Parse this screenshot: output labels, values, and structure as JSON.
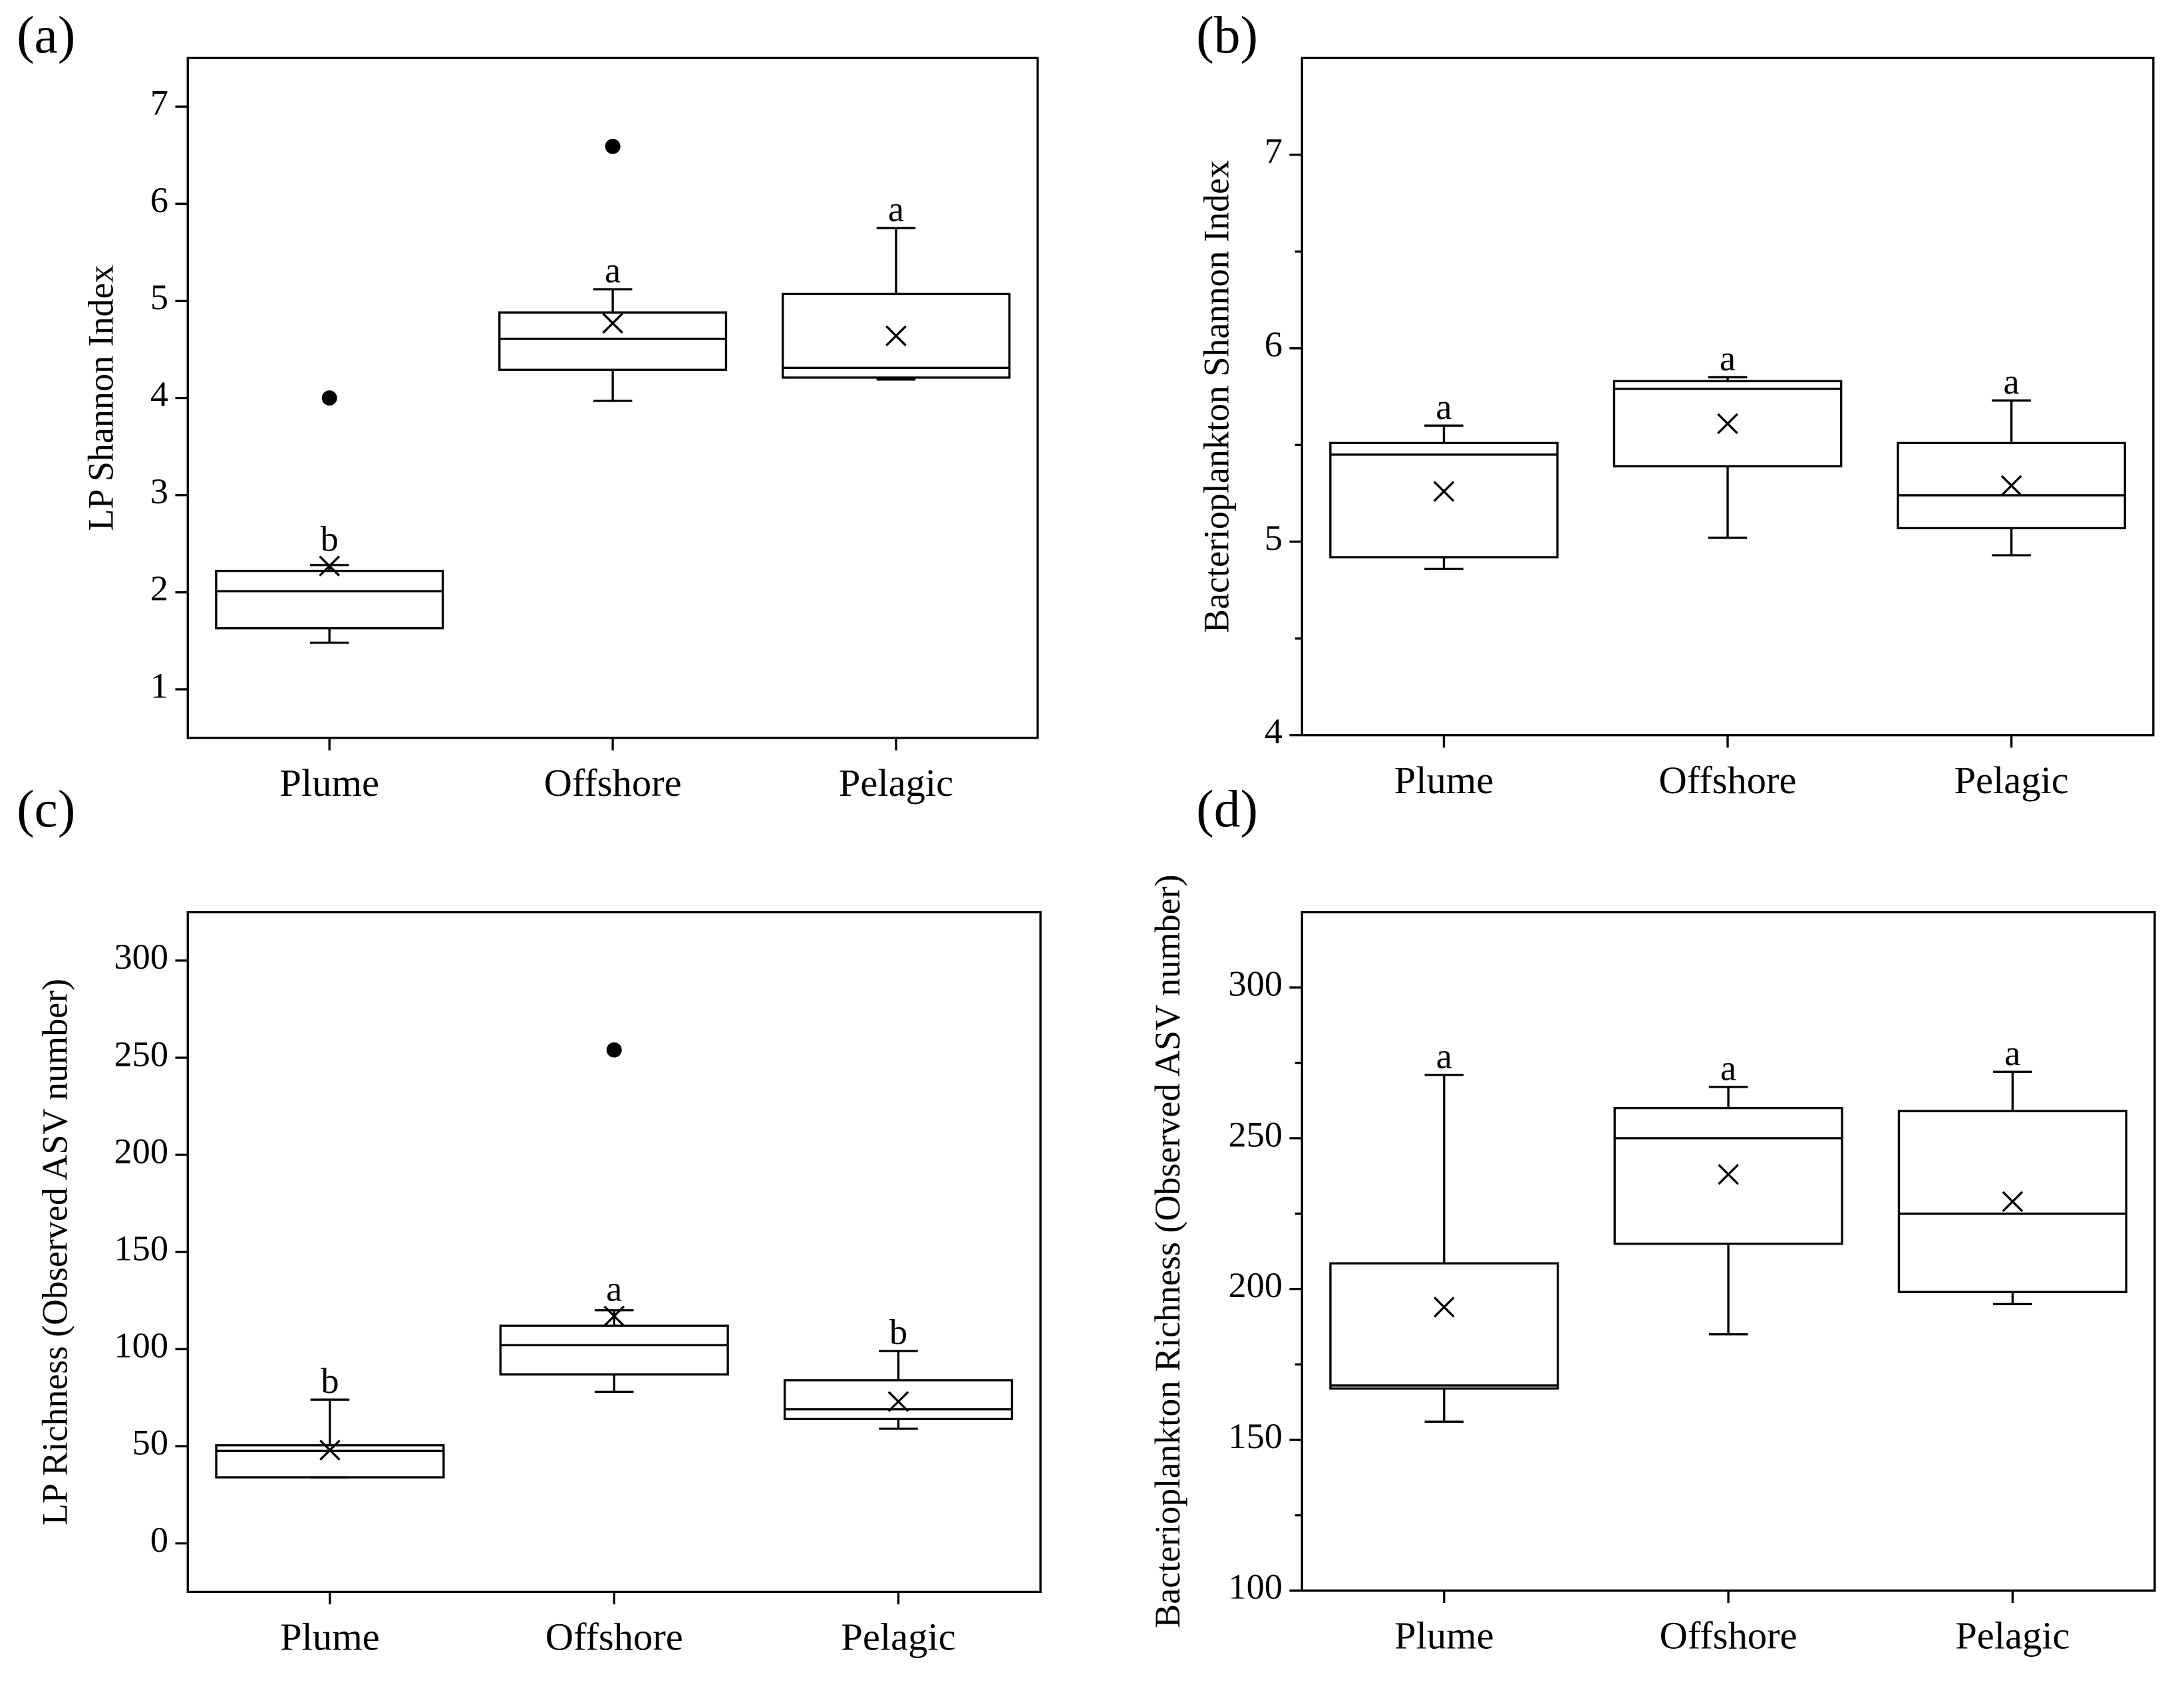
{
  "chart_data": [
    {
      "type": "box",
      "panel": "(a)",
      "ylabel": "LP Shannon Index",
      "categories": [
        "Plume",
        "Offshore",
        "Pelagic"
      ],
      "boxes": [
        {
          "min": 1.48,
          "q1": 1.63,
          "median": 2.01,
          "q3": 2.22,
          "max": 2.28,
          "mean": 2.27,
          "outliers": [
            4.0
          ],
          "letter": "b"
        },
        {
          "min": 3.97,
          "q1": 4.29,
          "median": 4.61,
          "q3": 4.88,
          "max": 5.12,
          "mean": 4.77,
          "outliers": [
            6.59
          ],
          "letter": "a"
        },
        {
          "min": 4.19,
          "q1": 4.21,
          "median": 4.31,
          "q3": 5.07,
          "max": 5.75,
          "mean": 4.64,
          "outliers": [],
          "letter": "a"
        }
      ],
      "ylim": [
        0.5,
        7.5
      ],
      "yticks": [
        1,
        2,
        3,
        4,
        5,
        6,
        7
      ],
      "yminor": []
    },
    {
      "type": "box",
      "panel": "(b)",
      "ylabel": "Bacterioplankton Shannon Index",
      "categories": [
        "Plume",
        "Offshore",
        "Pelagic"
      ],
      "boxes": [
        {
          "min": 4.86,
          "q1": 4.92,
          "median": 5.45,
          "q3": 5.51,
          "max": 5.6,
          "mean": 5.26,
          "outliers": [],
          "letter": "a"
        },
        {
          "min": 5.02,
          "q1": 5.39,
          "median": 5.79,
          "q3": 5.83,
          "max": 5.85,
          "mean": 5.61,
          "outliers": [],
          "letter": "a"
        },
        {
          "min": 4.93,
          "q1": 5.07,
          "median": 5.24,
          "q3": 5.51,
          "max": 5.73,
          "mean": 5.29,
          "outliers": [],
          "letter": "a"
        }
      ],
      "ylim": [
        4,
        7.5
      ],
      "yticks": [
        4,
        5,
        6,
        7
      ],
      "yminor": [
        4.5,
        5.5,
        6.5
      ]
    },
    {
      "type": "box",
      "panel": "(c)",
      "ylabel": "LP Richness (Observed ASV number)",
      "categories": [
        "Plume",
        "Offshore",
        "Pelagic"
      ],
      "boxes": [
        {
          "min": 34,
          "q1": 34,
          "median": 47.6,
          "q3": 50.5,
          "max": 74,
          "mean": 48,
          "outliers": [],
          "letter": "b"
        },
        {
          "min": 78,
          "q1": 87,
          "median": 102,
          "q3": 112,
          "max": 120,
          "mean": 117,
          "outliers": [
            254
          ],
          "letter": "a"
        },
        {
          "min": 59,
          "q1": 64,
          "median": 69,
          "q3": 84,
          "max": 99,
          "mean": 73,
          "outliers": [],
          "letter": "b"
        }
      ],
      "ylim": [
        -25,
        325
      ],
      "yticks": [
        0,
        50,
        100,
        150,
        200,
        250,
        300
      ],
      "yminor": []
    },
    {
      "type": "box",
      "panel": "(d)",
      "ylabel": "Bacterioplankton Richness (Observed ASV number)",
      "categories": [
        "Plume",
        "Offshore",
        "Pelagic"
      ],
      "boxes": [
        {
          "min": 156,
          "q1": 167,
          "median": 168,
          "q3": 208.5,
          "max": 271,
          "mean": 194,
          "outliers": [],
          "letter": "a"
        },
        {
          "min": 185,
          "q1": 215,
          "median": 250,
          "q3": 260,
          "max": 267,
          "mean": 238,
          "outliers": [],
          "letter": "a"
        },
        {
          "min": 195,
          "q1": 199,
          "median": 225,
          "q3": 259,
          "max": 272,
          "mean": 229,
          "outliers": [],
          "letter": "a"
        }
      ],
      "ylim": [
        100,
        325
      ],
      "yticks": [
        100,
        150,
        200,
        250,
        300
      ],
      "yminor": [
        125,
        175,
        225,
        275
      ]
    }
  ]
}
